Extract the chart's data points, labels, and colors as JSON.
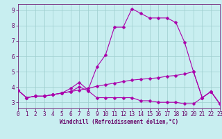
{
  "background_color": "#c8eef0",
  "line_color": "#aa00aa",
  "grid_color": "#9ecece",
  "xlabel": "Windchill (Refroidissement éolien,°C)",
  "xlabel_color": "#660066",
  "tick_color": "#660066",
  "xlim": [
    0,
    23
  ],
  "ylim": [
    2.6,
    9.4
  ],
  "yticks": [
    3,
    4,
    5,
    6,
    7,
    8,
    9
  ],
  "xticks": [
    0,
    1,
    2,
    3,
    4,
    5,
    6,
    7,
    8,
    9,
    10,
    11,
    12,
    13,
    14,
    15,
    16,
    17,
    18,
    19,
    20,
    21,
    22,
    23
  ],
  "lines": [
    {
      "x": [
        0,
        1,
        2,
        3,
        4,
        5,
        6,
        7,
        8,
        9,
        10,
        11,
        12,
        13,
        14,
        15,
        16,
        17,
        18,
        19,
        20,
        21,
        22,
        23
      ],
      "y": [
        3.8,
        3.3,
        3.4,
        3.4,
        3.5,
        3.6,
        3.7,
        3.8,
        3.9,
        4.05,
        4.15,
        4.25,
        4.35,
        4.45,
        4.5,
        4.55,
        4.6,
        4.7,
        4.75,
        4.85,
        5.0,
        3.3,
        3.7,
        2.9
      ],
      "marker": "D",
      "markersize": 2.5
    },
    {
      "x": [
        0,
        1,
        2,
        3,
        4,
        5,
        6,
        7,
        8,
        9,
        10,
        11,
        12,
        13,
        14,
        15,
        16,
        17,
        18,
        19,
        20,
        21,
        22,
        23
      ],
      "y": [
        3.8,
        3.3,
        3.4,
        3.4,
        3.5,
        3.6,
        3.9,
        4.3,
        3.8,
        5.3,
        6.1,
        7.9,
        7.9,
        9.1,
        8.8,
        8.5,
        8.5,
        8.5,
        8.2,
        6.9,
        5.0,
        3.3,
        3.7,
        2.9
      ],
      "marker": "D",
      "markersize": 2.5
    },
    {
      "x": [
        0,
        1,
        2,
        3,
        4,
        5,
        6,
        7,
        8,
        9,
        10,
        11,
        12,
        13,
        14,
        15,
        16,
        17,
        18,
        19,
        20,
        21,
        22,
        23
      ],
      "y": [
        3.8,
        3.3,
        3.4,
        3.4,
        3.5,
        3.6,
        3.7,
        4.0,
        3.75,
        3.3,
        3.3,
        3.3,
        3.3,
        3.3,
        3.1,
        3.1,
        3.0,
        3.0,
        3.0,
        2.9,
        2.9,
        3.3,
        3.7,
        2.9
      ],
      "marker": "D",
      "markersize": 2.5
    }
  ],
  "figwidth": 3.2,
  "figheight": 2.0,
  "dpi": 100
}
